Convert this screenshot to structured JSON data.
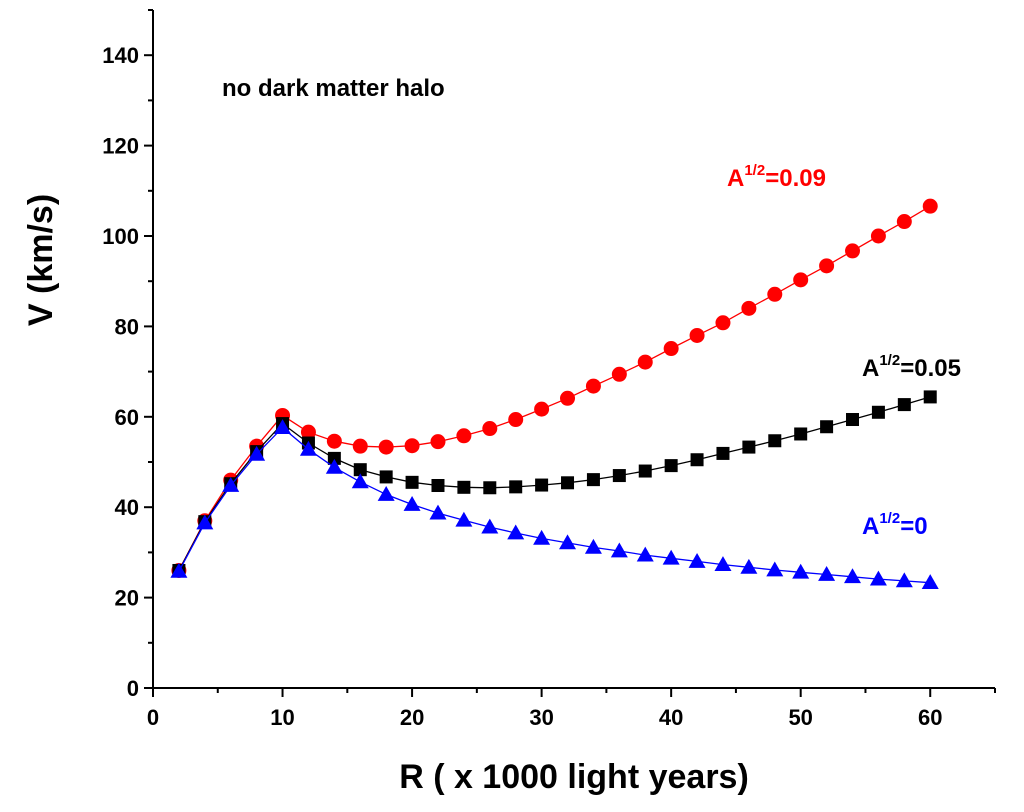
{
  "chart_data": {
    "type": "scatter",
    "xlabel": "R ( x 1000 light years)",
    "ylabel": "V (km/s)",
    "xlim": [
      0,
      65
    ],
    "ylim": [
      0,
      150
    ],
    "xticks": [
      "0",
      "10",
      "20",
      "30",
      "40",
      "50",
      "60"
    ],
    "yticks": [
      "0",
      "20",
      "40",
      "60",
      "80",
      "100",
      "120",
      "140"
    ],
    "grid": false,
    "annotation": "no dark matter halo",
    "series": [
      {
        "label_base": "A",
        "label_sup": "1/2",
        "label_value": "=0.09",
        "color": "#ff0000",
        "marker": "circle",
        "x": [
          2,
          4,
          6,
          8,
          10,
          12,
          14,
          16,
          18,
          20,
          22,
          24,
          26,
          28,
          30,
          32,
          34,
          36,
          38,
          40,
          42,
          44,
          46,
          48,
          50,
          52,
          54,
          56,
          58,
          60
        ],
        "values": [
          26,
          37,
          46,
          53.5,
          60.3,
          56.6,
          54.6,
          53.5,
          53.3,
          53.6,
          54.5,
          55.8,
          57.4,
          59.4,
          61.7,
          64.1,
          66.8,
          69.4,
          72.1,
          75.1,
          78,
          80.8,
          84,
          87.1,
          90.3,
          93.4,
          96.7,
          100,
          103.2,
          106.6
        ]
      },
      {
        "label_base": "A",
        "label_sup": "1/2",
        "label_value": "=0.05",
        "color": "#000000",
        "marker": "square",
        "x": [
          2,
          4,
          6,
          8,
          10,
          12,
          14,
          16,
          18,
          20,
          22,
          24,
          26,
          28,
          30,
          32,
          34,
          36,
          38,
          40,
          42,
          44,
          46,
          48,
          50,
          52,
          54,
          56,
          58,
          60
        ],
        "values": [
          26,
          36.8,
          45.2,
          52.3,
          58.5,
          54.2,
          50.8,
          48.3,
          46.7,
          45.5,
          44.8,
          44.4,
          44.3,
          44.5,
          44.9,
          45.4,
          46.1,
          47,
          48,
          49.2,
          50.5,
          51.9,
          53.3,
          54.7,
          56.2,
          57.8,
          59.4,
          61,
          62.7,
          64.4
        ]
      },
      {
        "label_base": "A",
        "label_sup": "1/2",
        "label_value": "=0",
        "color": "#0000ff",
        "marker": "triangle",
        "x": [
          2,
          4,
          6,
          8,
          10,
          12,
          14,
          16,
          18,
          20,
          22,
          24,
          26,
          28,
          30,
          32,
          34,
          36,
          38,
          40,
          42,
          44,
          46,
          48,
          50,
          52,
          54,
          56,
          58,
          60
        ],
        "values": [
          25.8,
          36.5,
          44.8,
          51.7,
          57.6,
          52.8,
          48.8,
          45.6,
          42.8,
          40.6,
          38.7,
          37.1,
          35.6,
          34.3,
          33.1,
          32.1,
          31.1,
          30.3,
          29.4,
          28.7,
          28,
          27.3,
          26.7,
          26.1,
          25.6,
          25.1,
          24.6,
          24.1,
          23.7,
          23.3
        ]
      }
    ]
  }
}
